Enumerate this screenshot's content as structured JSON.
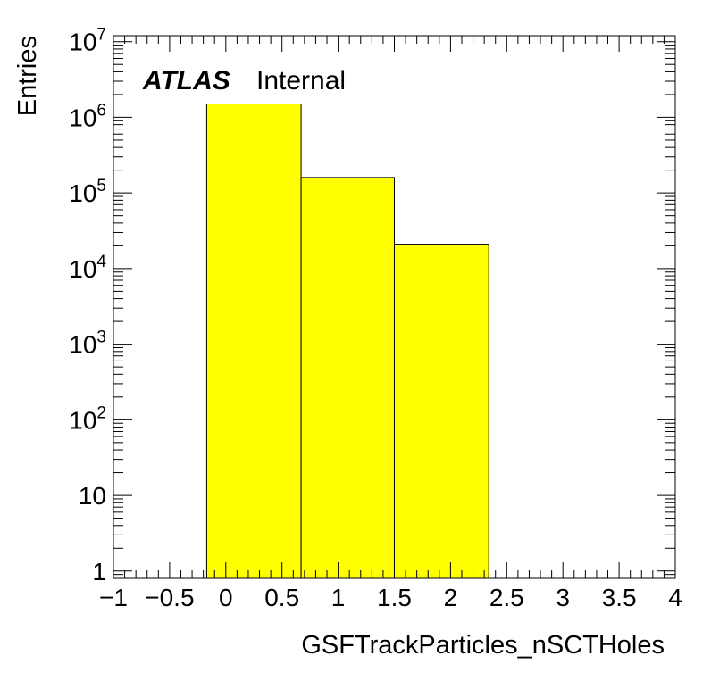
{
  "chart_data": {
    "type": "bar",
    "histogram": true,
    "title": "",
    "xlabel": "GSFTrackParticles_nSCTHoles",
    "ylabel": "Entries",
    "label": {
      "experiment": "ATLAS",
      "status": "Internal"
    },
    "x_range": [
      -1,
      4
    ],
    "y_scale": "log",
    "y_range": [
      0.8,
      12000000
    ],
    "bar_color": "#ffff00",
    "bins": [
      {
        "low": -0.17,
        "high": 0.67,
        "value": 1500000
      },
      {
        "low": 0.67,
        "high": 1.5,
        "value": 160000
      },
      {
        "low": 1.5,
        "high": 2.34,
        "value": 21000
      }
    ],
    "x_ticks": [
      {
        "value": -1,
        "label": "−1"
      },
      {
        "value": -0.5,
        "label": "−0.5"
      },
      {
        "value": 0,
        "label": "0"
      },
      {
        "value": 0.5,
        "label": "0.5"
      },
      {
        "value": 1,
        "label": "1"
      },
      {
        "value": 1.5,
        "label": "1.5"
      },
      {
        "value": 2,
        "label": "2"
      },
      {
        "value": 2.5,
        "label": "2.5"
      },
      {
        "value": 3,
        "label": "3"
      },
      {
        "value": 3.5,
        "label": "3.5"
      },
      {
        "value": 4,
        "label": "4"
      }
    ],
    "y_ticks": [
      {
        "value": 1,
        "base": "1",
        "exp": ""
      },
      {
        "value": 10,
        "base": "10",
        "exp": ""
      },
      {
        "value": 100,
        "base": "10",
        "exp": "2"
      },
      {
        "value": 1000,
        "base": "10",
        "exp": "3"
      },
      {
        "value": 10000,
        "base": "10",
        "exp": "4"
      },
      {
        "value": 100000,
        "base": "10",
        "exp": "5"
      },
      {
        "value": 1000000,
        "base": "10",
        "exp": "6"
      },
      {
        "value": 10000000,
        "base": "10",
        "exp": "7"
      }
    ]
  }
}
